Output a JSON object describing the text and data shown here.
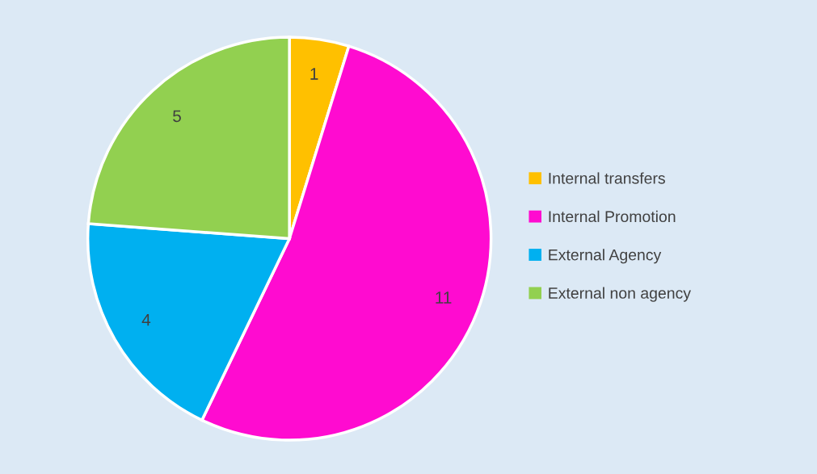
{
  "chart_data": {
    "type": "pie",
    "categories": [
      "Internal transfers",
      "Internal Promotion",
      "External Agency",
      "External non agency"
    ],
    "values": [
      1,
      11,
      4,
      5
    ],
    "colors": [
      "#ffc000",
      "#ff0bd0",
      "#00b0f0",
      "#92d050"
    ],
    "data_labels": true,
    "legend": "right"
  }
}
